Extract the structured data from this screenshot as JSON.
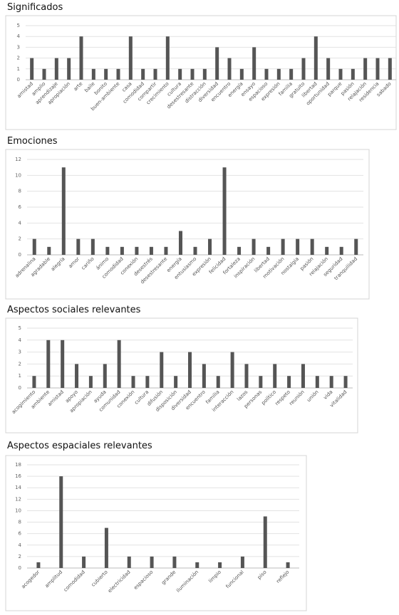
{
  "chart_data": [
    {
      "type": "bar",
      "title": "Significados",
      "color": "#555555",
      "grid": true,
      "ylim": [
        0,
        5
      ],
      "yticks": [
        0,
        1,
        2,
        3,
        4,
        5
      ],
      "categories": [
        "amistad",
        "amplio",
        "aprendizaje",
        "apropiación",
        "arte",
        "baile",
        "bonito",
        "buen-ambiente",
        "casa",
        "comodidad",
        "compartir",
        "crecimiento",
        "cultura",
        "desestresante",
        "distracción",
        "diversidad",
        "encuentro",
        "energía",
        "ensayo",
        "espacioso",
        "expresión",
        "familia",
        "gratuito",
        "libertad",
        "oportunidad",
        "parque",
        "pasión",
        "relajación",
        "residencia",
        "sabado"
      ],
      "values": [
        2,
        1,
        2,
        2,
        4,
        1,
        1,
        1,
        4,
        1,
        1,
        4,
        1,
        1,
        1,
        3,
        2,
        1,
        3,
        1,
        1,
        1,
        2,
        4,
        2,
        1,
        1,
        2,
        2,
        2
      ]
    },
    {
      "type": "bar",
      "title": "Emociones",
      "color": "#555555",
      "grid": true,
      "ylim": [
        0,
        12
      ],
      "yticks": [
        0,
        2,
        4,
        6,
        8,
        10,
        12
      ],
      "categories": [
        "adrenalina",
        "agradable",
        "alegría",
        "amor",
        "cariño",
        "ánimo",
        "comodidad",
        "conexión",
        "desestrés",
        "desestresante",
        "energía",
        "entusiasmo",
        "expresión",
        "felicidad",
        "fortaleza",
        "inspiración",
        "libertad",
        "motivación",
        "nostalgia",
        "pasión",
        "relajación",
        "seguridad",
        "tranquilidad"
      ],
      "values": [
        2,
        1,
        11,
        2,
        2,
        1,
        1,
        1,
        1,
        1,
        3,
        1,
        2,
        11,
        1,
        2,
        1,
        2,
        2,
        2,
        1,
        1,
        2
      ]
    },
    {
      "type": "bar",
      "title": "Aspectos sociales relevantes",
      "color": "#555555",
      "grid": true,
      "ylim": [
        0,
        5
      ],
      "yticks": [
        0,
        1,
        2,
        3,
        4,
        5
      ],
      "categories": [
        "acogimiento",
        "ambiente",
        "amistad",
        "apoyo",
        "apropiación",
        "ayuda",
        "comunidad",
        "conexión",
        "cultura",
        "difusión",
        "disposición",
        "diversidad",
        "encuentro",
        "familia",
        "interacción",
        "lazos",
        "personas",
        "político",
        "respeto",
        "reunión",
        "unión",
        "vida",
        "vitalidad"
      ],
      "values": [
        1,
        4,
        4,
        2,
        1,
        2,
        4,
        1,
        1,
        3,
        1,
        3,
        2,
        1,
        3,
        2,
        1,
        2,
        1,
        2,
        1,
        1,
        1
      ]
    },
    {
      "type": "bar",
      "title": "Aspectos espaciales relevantes",
      "color": "#555555",
      "grid": true,
      "ylim": [
        0,
        18
      ],
      "yticks": [
        0,
        2,
        4,
        6,
        8,
        10,
        12,
        14,
        16,
        18
      ],
      "categories": [
        "acogedor",
        "amplitud",
        "comodidad",
        "cubierto",
        "electricidad",
        "espacioso",
        "grande",
        "iluminación",
        "limpio",
        "funcional",
        "piso",
        "reflejo"
      ],
      "values": [
        1,
        16,
        2,
        7,
        2,
        2,
        2,
        1,
        1,
        2,
        9,
        1
      ]
    }
  ]
}
